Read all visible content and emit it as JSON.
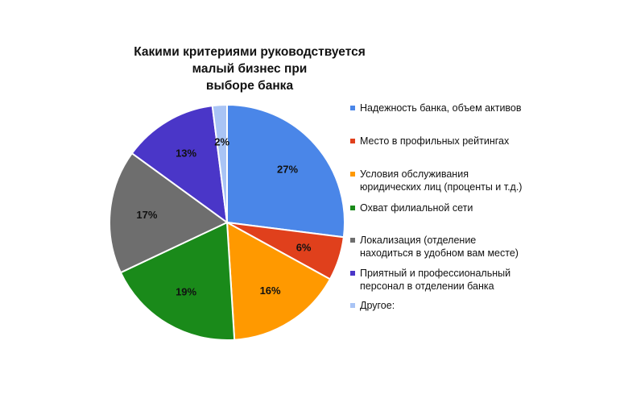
{
  "chart_data": {
    "type": "pie",
    "title": "Какими критериями руководствуется малый бизнес при выборе банка",
    "title_lines": [
      "Какими критериями руководствуется малый бизнес при",
      "выборе банка"
    ],
    "legend_position": "right",
    "slices": [
      {
        "name": "Надежность банка, объем активов",
        "name_lines": [
          "Надежность банка, объем активов"
        ],
        "value": 27,
        "label": "27%",
        "color": "#4A86E8"
      },
      {
        "name": "Место в профильных рейтингах",
        "name_lines": [
          "Место в профильных рейтингах"
        ],
        "value": 6,
        "label": "6%",
        "color": "#E0401C"
      },
      {
        "name": "Условия обслуживания юридических лиц (проценты и т.д.)",
        "name_lines": [
          "Условия обслуживания",
          "юридических лиц (проценты и т.д.)"
        ],
        "value": 16,
        "label": "16%",
        "color": "#FF9900"
      },
      {
        "name": "Охват филиальной сети",
        "name_lines": [
          "Охват филиальной сети"
        ],
        "value": 19,
        "label": "19%",
        "color": "#1A8A1A"
      },
      {
        "name": "Локализация (отделение находиться в удобном вам месте)",
        "name_lines": [
          "Локализация (отделение",
          "находиться в удобном вам месте)"
        ],
        "value": 17,
        "label": "17%",
        "color": "#6E6E6E"
      },
      {
        "name": "Приятный и профессиональный персонал в отделении банка",
        "name_lines": [
          "Приятный и профессиональный",
          "персонал в отделении банка"
        ],
        "value": 13,
        "label": "13%",
        "color": "#4A36C8"
      },
      {
        "name": "Другое:",
        "name_lines": [
          "Другое:"
        ],
        "value": 2,
        "label": "2%",
        "color": "#A9C4F5"
      }
    ]
  }
}
